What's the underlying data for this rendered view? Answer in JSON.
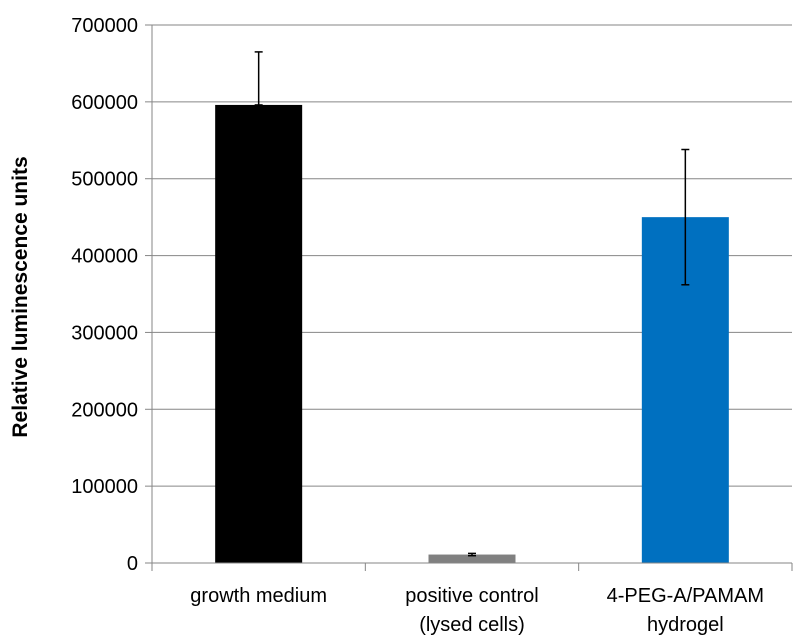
{
  "chart_data": {
    "type": "bar",
    "title": "",
    "xlabel": "",
    "ylabel": "Relative luminescence units",
    "ylim": [
      0,
      700000
    ],
    "yticks": [
      0,
      100000,
      200000,
      300000,
      400000,
      500000,
      600000,
      700000
    ],
    "ytick_labels": [
      "0",
      "100000",
      "200000",
      "300000",
      "400000",
      "500000",
      "600000",
      "700000"
    ],
    "grid": true,
    "legend": "none",
    "categories": [
      [
        "growth medium"
      ],
      [
        "positive control",
        "(lysed cells)"
      ],
      [
        "4-PEG-A/PAMAM",
        "hydrogel"
      ]
    ],
    "values": [
      596000,
      11000,
      450000
    ],
    "error_upper": [
      665000,
      12500,
      538000
    ],
    "error_lower": [
      596000,
      9500,
      362000
    ],
    "colors": [
      "#000000",
      "#808080",
      "#0070c0"
    ]
  }
}
